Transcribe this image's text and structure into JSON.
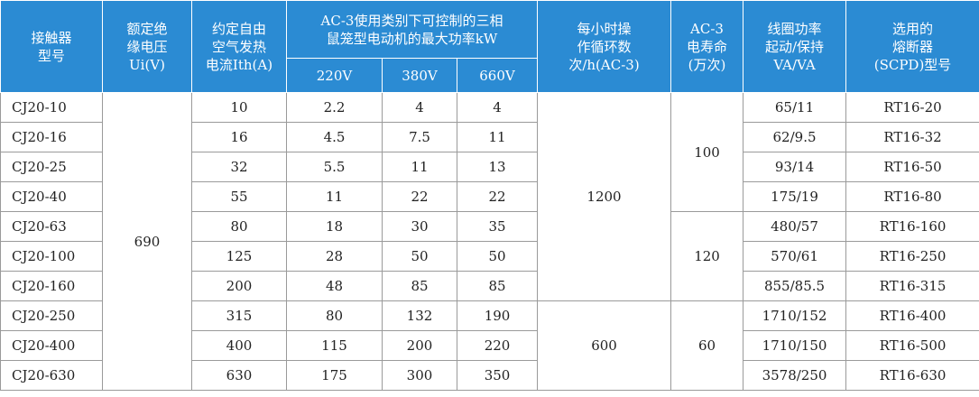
{
  "header": {
    "row1": [
      [
        "接触器",
        "型号"
      ],
      [
        "额定绝",
        "缘电压",
        "Ui(V)"
      ],
      [
        "约定自由",
        "空气发热",
        "电流Ith(A)"
      ],
      [
        "AC-3使用类别下可控制的三相",
        "鼠笼型电动机的最大功率kW"
      ],
      [
        "每小时操",
        "作循环数",
        "次/h(AC-3)"
      ],
      [
        "AC-3",
        "电寿命",
        "(万次)"
      ],
      [
        "线圈功率",
        "起动/保持",
        "VA/VA"
      ],
      [
        "选用的",
        "熔断器",
        "(SCPD)型号"
      ]
    ],
    "row2": [
      "220V",
      "380V",
      "660V"
    ]
  },
  "table": {
    "ui_voltage": "690",
    "cycles": [
      "1200",
      "600"
    ],
    "life": [
      "100",
      "120",
      "60"
    ],
    "rows": [
      [
        "CJ20-10",
        "10",
        "2.2",
        "4",
        "4",
        "65/11",
        "RT16-20"
      ],
      [
        "CJ20-16",
        "16",
        "4.5",
        "7.5",
        "11",
        "62/9.5",
        "RT16-32"
      ],
      [
        "CJ20-25",
        "32",
        "5.5",
        "11",
        "13",
        "93/14",
        "RT16-50"
      ],
      [
        "CJ20-40",
        "55",
        "11",
        "22",
        "22",
        "175/19",
        "RT16-80"
      ],
      [
        "CJ20-63",
        "80",
        "18",
        "30",
        "35",
        "480/57",
        "RT16-160"
      ],
      [
        "CJ20-100",
        "125",
        "28",
        "50",
        "50",
        "570/61",
        "RT16-250"
      ],
      [
        "CJ20-160",
        "200",
        "48",
        "85",
        "85",
        "855/85.5",
        "RT16-315"
      ],
      [
        "CJ20-250",
        "315",
        "80",
        "132",
        "190",
        "1710/152",
        "RT16-400"
      ],
      [
        "CJ20-400",
        "400",
        "115",
        "200",
        "220",
        "1710/150",
        "RT16-500"
      ],
      [
        "CJ20-630",
        "630",
        "175",
        "300",
        "350",
        "3578/250",
        "RT16-630"
      ]
    ]
  }
}
